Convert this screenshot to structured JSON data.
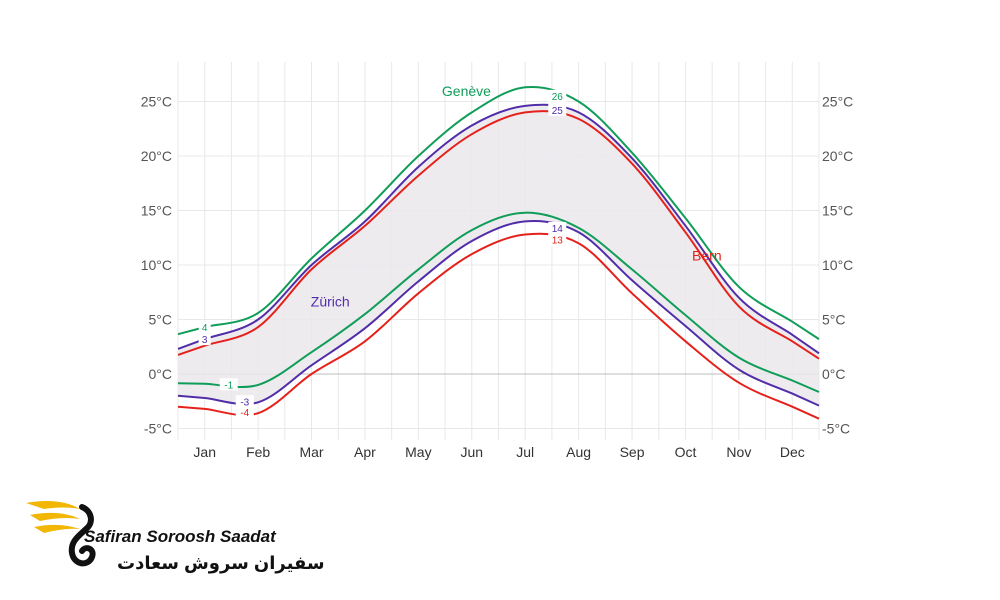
{
  "chart_data": {
    "type": "line",
    "categories": [
      "Jan",
      "Feb",
      "Mar",
      "Apr",
      "May",
      "Jun",
      "Jul",
      "Aug",
      "Sep",
      "Oct",
      "Nov",
      "Dec"
    ],
    "y_ticks": [
      "-5°C",
      "0°C",
      "5°C",
      "10°C",
      "15°C",
      "20°C",
      "25°C"
    ],
    "ylim": [
      -6,
      28
    ],
    "grid": true,
    "series": [
      {
        "name": "Genève",
        "kind": "high",
        "color": "#0f9d58",
        "values": [
          4.3,
          5.6,
          10.6,
          15.0,
          20.0,
          24.0,
          26.3,
          25.0,
          20.3,
          14.3,
          8.0,
          4.8
        ],
        "labels": [
          {
            "index": 0,
            "text": "4"
          },
          {
            "index": 6.6,
            "text": "26"
          }
        ]
      },
      {
        "name": "Zürich",
        "kind": "high",
        "color": "#512da8",
        "values": [
          3.2,
          5.0,
          10.0,
          14.0,
          19.0,
          22.8,
          24.6,
          24.0,
          19.8,
          13.6,
          7.0,
          3.6
        ],
        "labels": [
          {
            "index": 0,
            "text": "3"
          },
          {
            "index": 6.6,
            "text": "25"
          }
        ]
      },
      {
        "name": "Bern",
        "kind": "high",
        "color": "#e5211c",
        "values": [
          2.6,
          4.3,
          9.6,
          13.6,
          18.2,
          22.0,
          24.0,
          23.4,
          19.3,
          13.0,
          6.2,
          3.0
        ],
        "labels": []
      },
      {
        "name": "Genève",
        "kind": "low",
        "color": "#0f9d58",
        "values": [
          -0.9,
          -1.0,
          2.0,
          5.5,
          9.6,
          13.2,
          14.8,
          13.4,
          9.6,
          5.4,
          1.5,
          -0.6
        ],
        "labels": [
          {
            "index": 0.45,
            "text": "-1"
          }
        ]
      },
      {
        "name": "Zürich",
        "kind": "low",
        "color": "#512da8",
        "values": [
          -2.2,
          -2.6,
          0.8,
          4.2,
          8.5,
          12.2,
          14.0,
          13.0,
          8.6,
          4.4,
          0.4,
          -1.8
        ],
        "labels": [
          {
            "index": 0.75,
            "text": "-3"
          },
          {
            "index": 6.6,
            "text": "14"
          }
        ]
      },
      {
        "name": "Bern",
        "kind": "low",
        "color": "#e5211c",
        "values": [
          -3.2,
          -3.6,
          0.0,
          3.0,
          7.4,
          11.0,
          12.8,
          12.0,
          7.4,
          3.0,
          -0.8,
          -3.0
        ],
        "labels": [
          {
            "index": 0.75,
            "text": "-4"
          },
          {
            "index": 6.6,
            "text": "13"
          }
        ]
      }
    ],
    "series_labels": [
      {
        "text": "Genève",
        "color": "#0f9d58",
        "month_pos": 4.9,
        "value": 25.5
      },
      {
        "text": "Zürich",
        "color": "#512da8",
        "month_pos": 2.35,
        "value": 6.2
      },
      {
        "text": "Bern",
        "color": "#e5211c",
        "month_pos": 9.4,
        "value": 10.4
      }
    ]
  },
  "logo": {
    "en": "Safiran Soroosh Saadat",
    "fa": "سفیران سروش سعادت",
    "colors": {
      "gold": "#f2b705",
      "dark": "#111111"
    }
  }
}
